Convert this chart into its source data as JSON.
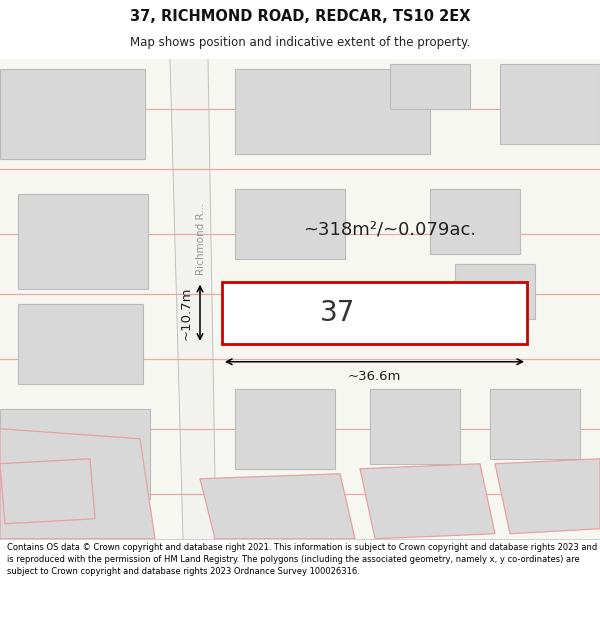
{
  "title": "37, RICHMOND ROAD, REDCAR, TS10 2EX",
  "subtitle": "Map shows position and indicative extent of the property.",
  "footer": "Contains OS data © Crown copyright and database right 2021. This information is subject to Crown copyright and database rights 2023 and is reproduced with the permission of HM Land Registry. The polygons (including the associated geometry, namely x, y co-ordinates) are subject to Crown copyright and database rights 2023 Ordnance Survey 100026316.",
  "map_bg": "#f7f7f2",
  "road_fill": "#f0f0ec",
  "road_border": "#c8c8c8",
  "building_fill": "#d8d8d8",
  "building_stroke": "#bbbbbb",
  "highlight_fill": "#ffffff",
  "highlight_stroke": "#cc0000",
  "road_line_color": "#e8a0a0",
  "street_label": "Richmond R...",
  "plot_number": "37",
  "area_label": "~318m²/~0.079ac.",
  "width_label": "~36.6m",
  "height_label": "~10.7m"
}
